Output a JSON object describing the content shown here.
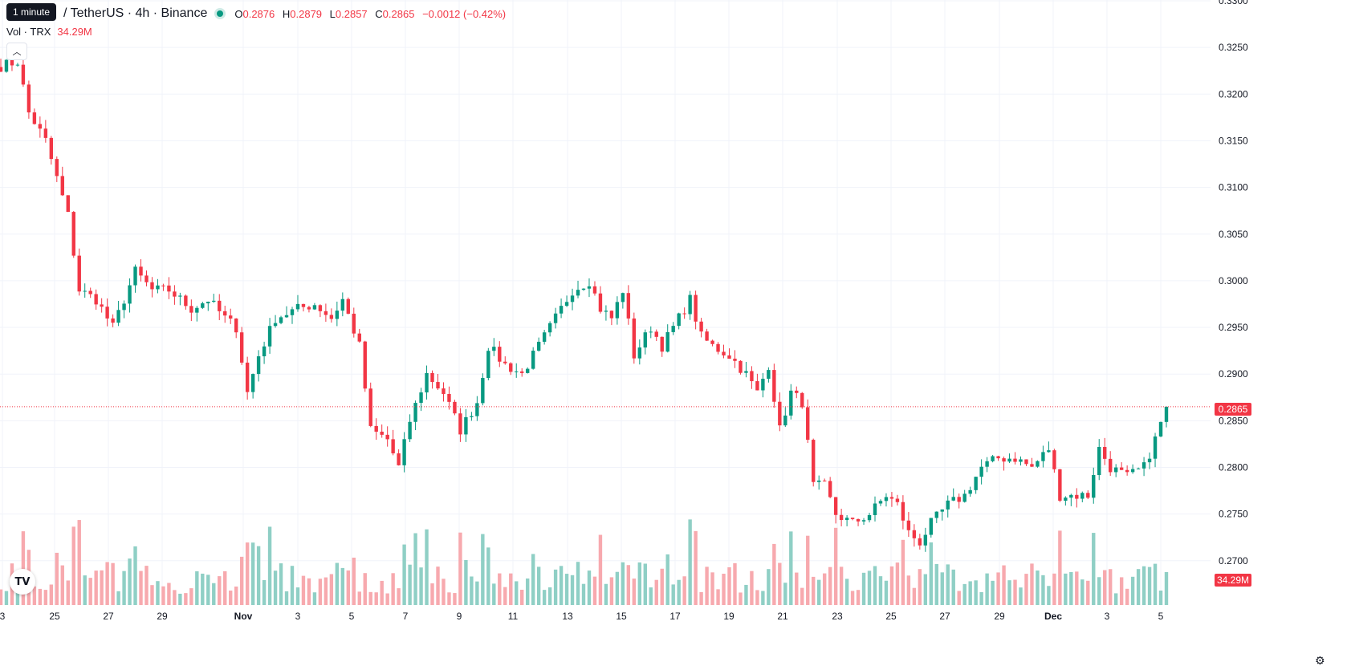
{
  "header": {
    "tooltip": "1 minute",
    "symbol": "/ TetherUS · 4h · Binance",
    "ohlc": {
      "o_label": "O",
      "o": "0.2876",
      "h_label": "H",
      "h": "0.2879",
      "l_label": "L",
      "l": "0.2857",
      "c_label": "C",
      "c": "0.2865",
      "change": "−0.0012 (−0.42%)"
    },
    "volume_label": "Vol · TRX",
    "volume_value": "34.29M"
  },
  "price_axis": {
    "ticks": [
      "0.3300",
      "0.3250",
      "0.3200",
      "0.3150",
      "0.3100",
      "0.3050",
      "0.3000",
      "0.2950",
      "0.2900",
      "0.2850",
      "0.2800",
      "0.2750",
      "0.2700"
    ],
    "last_price_tag": "0.2865",
    "volume_tag": "34.29M"
  },
  "time_axis": {
    "labels": [
      "3",
      "25",
      "27",
      "29",
      "Nov",
      "3",
      "5",
      "7",
      "9",
      "11",
      "13",
      "15",
      "17",
      "19",
      "21",
      "23",
      "25",
      "27",
      "29",
      "Dec",
      "3",
      "5"
    ],
    "bold": [
      "Nov",
      "Dec"
    ]
  },
  "colors": {
    "up": "#089981",
    "down": "#f23645",
    "up_vol": "#8fcfc5",
    "down_vol": "#f7a9ae",
    "grid": "#f0f3fa"
  },
  "icons": {
    "logo": "tradingview-logo-icon",
    "settings": "gear-icon",
    "collapse": "chevron-up-icon"
  },
  "chart_data": {
    "type": "candlestick",
    "interval": "4h",
    "last_price": 0.2865,
    "ylim": [
      0.2662,
      0.33
    ],
    "waypoints": [
      [
        0,
        0.323
      ],
      [
        3,
        0.3235
      ],
      [
        5,
        0.318
      ],
      [
        8,
        0.315
      ],
      [
        10,
        0.311
      ],
      [
        12,
        0.307
      ],
      [
        14,
        0.299
      ],
      [
        17,
        0.298
      ],
      [
        20,
        0.295
      ],
      [
        24,
        0.301
      ],
      [
        27,
        0.299
      ],
      [
        30,
        0.299
      ],
      [
        34,
        0.297
      ],
      [
        37,
        0.298
      ],
      [
        40,
        0.296
      ],
      [
        42,
        0.295
      ],
      [
        44,
        0.288
      ],
      [
        46,
        0.292
      ],
      [
        49,
        0.296
      ],
      [
        53,
        0.297
      ],
      [
        56,
        0.2975
      ],
      [
        59,
        0.296
      ],
      [
        61,
        0.298
      ],
      [
        64,
        0.293
      ],
      [
        66,
        0.284
      ],
      [
        69,
        0.283
      ],
      [
        71,
        0.28
      ],
      [
        73,
        0.285
      ],
      [
        76,
        0.29
      ],
      [
        79,
        0.288
      ],
      [
        82,
        0.284
      ],
      [
        85,
        0.287
      ],
      [
        87,
        0.293
      ],
      [
        90,
        0.291
      ],
      [
        93,
        0.29
      ],
      [
        96,
        0.293
      ],
      [
        99,
        0.296
      ],
      [
        102,
        0.299
      ],
      [
        105,
        0.3
      ],
      [
        107,
        0.297
      ],
      [
        109,
        0.296
      ],
      [
        111,
        0.299
      ],
      [
        113,
        0.292
      ],
      [
        116,
        0.295
      ],
      [
        118,
        0.293
      ],
      [
        121,
        0.296
      ],
      [
        123,
        0.298
      ],
      [
        125,
        0.294
      ],
      [
        127,
        0.293
      ],
      [
        130,
        0.292
      ],
      [
        133,
        0.29
      ],
      [
        135,
        0.288
      ],
      [
        137,
        0.291
      ],
      [
        139,
        0.284
      ],
      [
        141,
        0.288
      ],
      [
        143,
        0.287
      ],
      [
        145,
        0.278
      ],
      [
        147,
        0.278
      ],
      [
        149,
        0.275
      ],
      [
        152,
        0.274
      ],
      [
        155,
        0.275
      ],
      [
        158,
        0.277
      ],
      [
        160,
        0.276
      ],
      [
        162,
        0.273
      ],
      [
        164,
        0.272
      ],
      [
        166,
        0.274
      ],
      [
        169,
        0.276
      ],
      [
        172,
        0.277
      ],
      [
        175,
        0.28
      ],
      [
        178,
        0.281
      ],
      [
        181,
        0.281
      ],
      [
        184,
        0.28
      ],
      [
        187,
        0.282
      ],
      [
        189,
        0.277
      ],
      [
        192,
        0.277
      ],
      [
        194,
        0.277
      ],
      [
        196,
        0.282
      ],
      [
        198,
        0.28
      ],
      [
        201,
        0.279
      ],
      [
        204,
        0.28
      ],
      [
        206,
        0.283
      ],
      [
        208,
        0.2865
      ]
    ],
    "candle_count": 209,
    "start_date": "Oct 23",
    "end_date": "Dec 5"
  }
}
